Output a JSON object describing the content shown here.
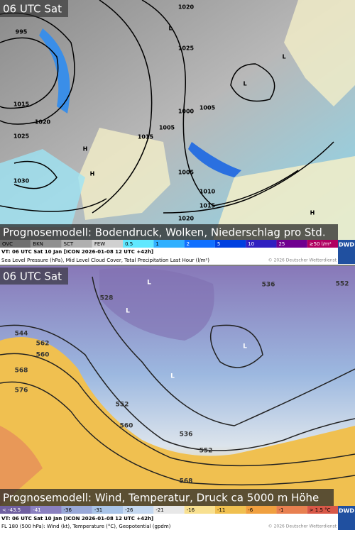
{
  "top": {
    "time": "06 UTC Sat",
    "banner": "Prognosemodell: Bodendruck, Wolken, Niederschlag pro Std.",
    "legend": [
      "OVC",
      "BKN",
      "SCT",
      "FEW",
      "0.5",
      "1",
      "2",
      "5",
      "10",
      "25",
      "≥50 l/m²"
    ],
    "logo": "DWD",
    "footer": {
      "valid": "VT: 06 UTC Sat  10 Jan [ICON 2026-01-08 12 UTC +42h]",
      "description": "Sea Level Pressure (hPa), Mid Level Cloud Cover, Total Precipitation Last Hour (l/m²)",
      "copyright": "© 2026 Deutscher Wetterdienst"
    },
    "labels": [
      "1020",
      "995",
      "1015",
      "1020",
      "1025",
      "1030",
      "1015",
      "1000",
      "1005",
      "1005",
      "1010",
      "1015",
      "1020",
      "1025",
      "1005",
      "L",
      "L",
      "L",
      "H",
      "H",
      "H"
    ]
  },
  "bottom": {
    "time": "06 UTC Sat",
    "banner": "Prognosemodell: Wind, Temperatur, Druck ca 5000 m Höhe",
    "legend": [
      "< -43.5",
      "-41",
      "-36",
      "-31",
      "-26",
      "-21",
      "-16",
      "-11",
      "-6",
      "-1",
      "> 1.5 °C"
    ],
    "logo": "DWD",
    "footer": {
      "valid": "VT: 06 UTC Sat  10 Jan [ICON 2026-01-08 12 UTC +42h]",
      "description": "FL 180 (500 hPa): Wind (kt), Temperature (°C), Geopotential (gpdm)",
      "copyright": "© 2026 Deutscher Wetterdienst"
    },
    "labels": [
      "544",
      "562",
      "560",
      "568",
      "576",
      "528",
      "536",
      "552",
      "560",
      "536",
      "552",
      "568",
      "552",
      "L",
      "L",
      "L",
      "L"
    ]
  }
}
